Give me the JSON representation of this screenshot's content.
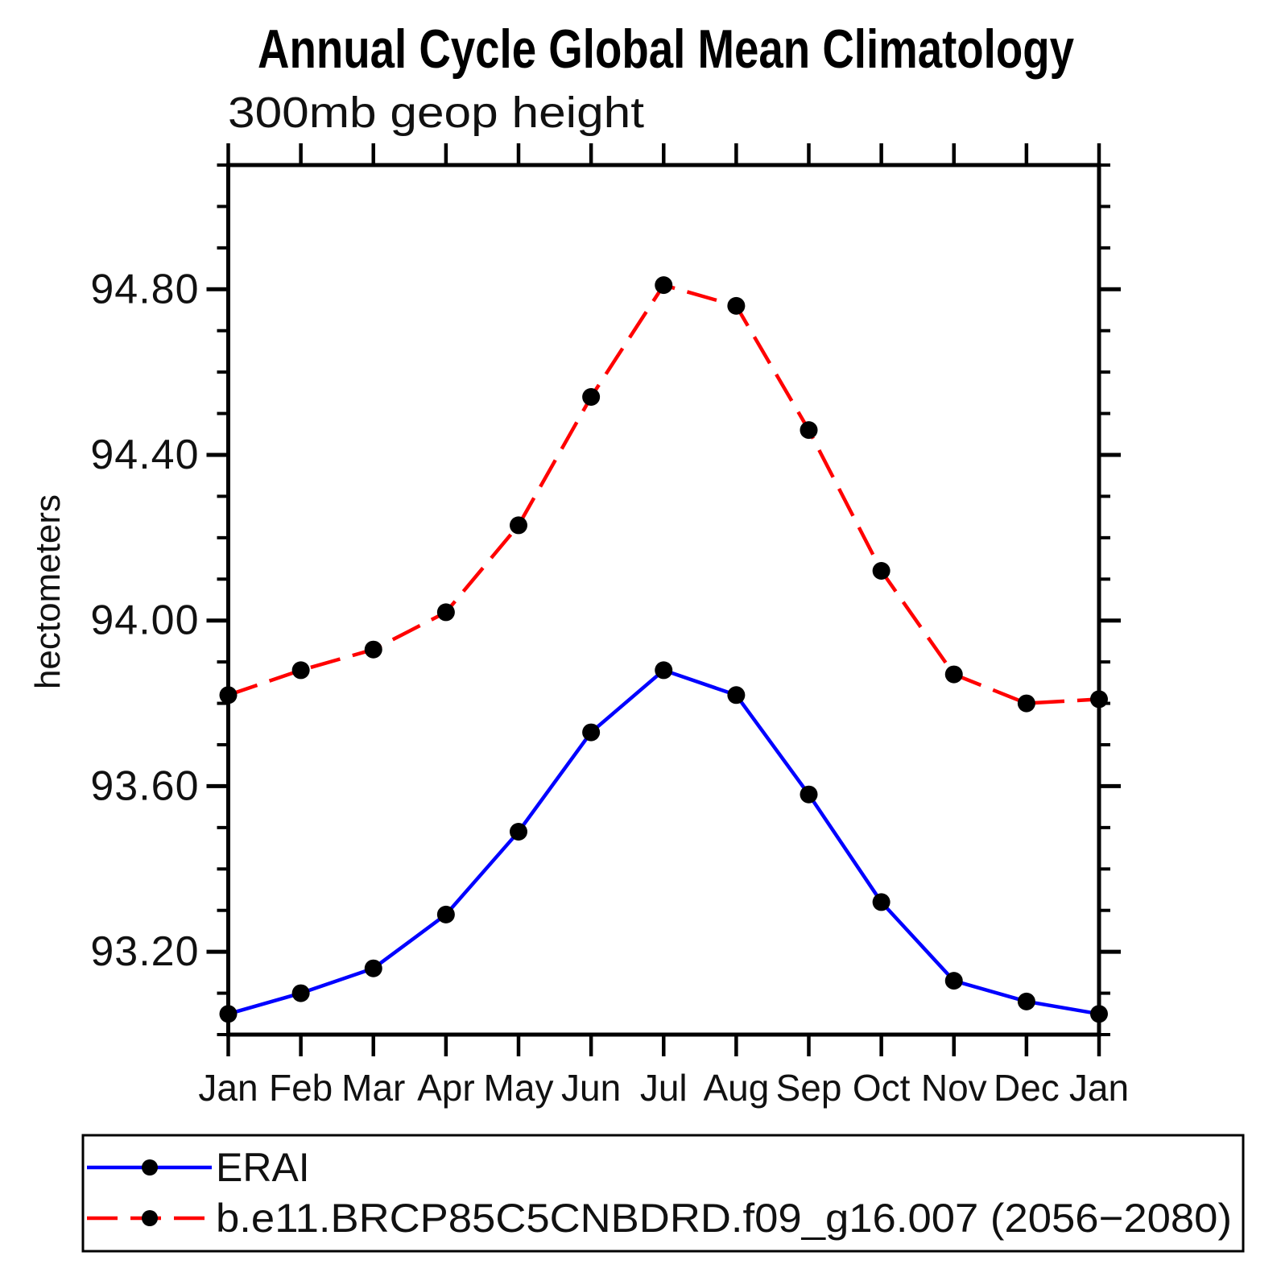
{
  "title": "Annual Cycle Global Mean Climatology",
  "subtitle": "300mb geop height",
  "chart_data": {
    "type": "line",
    "title": "Annual Cycle Global Mean Climatology",
    "subtitle": "300mb geop height",
    "xlabel": "",
    "ylabel": "hectometers",
    "categories": [
      "Jan",
      "Feb",
      "Mar",
      "Apr",
      "May",
      "Jun",
      "Jul",
      "Aug",
      "Sep",
      "Oct",
      "Nov",
      "Dec",
      "Jan"
    ],
    "y_tick_labels": [
      "93.20",
      "93.60",
      "94.00",
      "94.40",
      "94.80"
    ],
    "y_major_ticks": [
      93.2,
      93.6,
      94.0,
      94.4,
      94.8
    ],
    "y_minor_step": 0.1,
    "ylim": [
      93.0,
      95.1
    ],
    "grid": false,
    "legend_position": "bottom-left-box",
    "axis_color": "#000000",
    "marker_color": "#000000",
    "series": [
      {
        "name": "ERAI",
        "color": "#0000ff",
        "style": "solid",
        "marker": "circle",
        "values": [
          93.05,
          93.1,
          93.16,
          93.29,
          93.49,
          93.73,
          93.88,
          93.82,
          93.58,
          93.32,
          93.13,
          93.08,
          93.05
        ]
      },
      {
        "name": "b.e11.BRCP85C5CNBDRD.f09_g16.007 (2056−2080)",
        "color": "#ff0000",
        "style": "dashed",
        "marker": "circle",
        "values": [
          93.82,
          93.88,
          93.93,
          94.02,
          94.23,
          94.54,
          94.81,
          94.76,
          94.46,
          94.12,
          93.87,
          93.8,
          93.81
        ]
      }
    ]
  }
}
